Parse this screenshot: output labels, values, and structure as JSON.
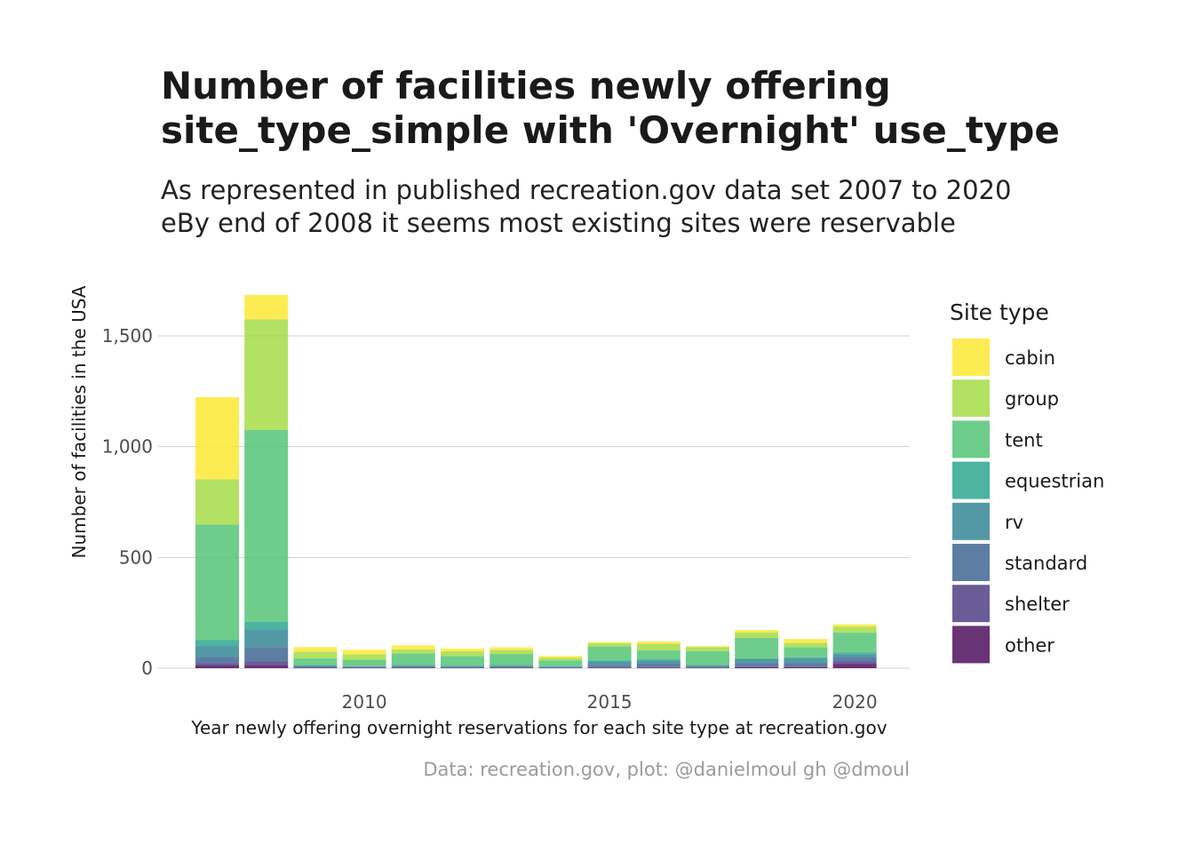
{
  "title_lines": [
    "Number of facilities newly offering",
    "site_type_simple with 'Overnight' use_type"
  ],
  "subtitle_lines": [
    "As represented in published recreation.gov data set 2007 to 2020",
    "eBy end of 2008 it seems most existing sites were reservable"
  ],
  "caption": "Data: recreation.gov, plot: @danielmoul gh @dmoul",
  "chart_data": {
    "type": "bar",
    "stacked": true,
    "xlabel": "Year newly offering overnight reservations for each site type at recreation.gov",
    "ylabel": "Number of facilities in the USA",
    "categories": [
      2007,
      2008,
      2009,
      2010,
      2011,
      2012,
      2013,
      2014,
      2015,
      2016,
      2017,
      2018,
      2019,
      2020
    ],
    "x_ticks": [
      2010,
      2015,
      2020
    ],
    "x_tick_labels": [
      "2010",
      "2015",
      "2020"
    ],
    "y_ticks": [
      0,
      500,
      1000,
      1500
    ],
    "y_tick_labels": [
      "0",
      "500",
      "1,000",
      "1,500"
    ],
    "ylim": [
      0,
      1700
    ],
    "grid": true,
    "legend": {
      "title": "Site type",
      "position": "right"
    },
    "series": [
      {
        "name": "other",
        "color": "#440154",
        "values": [
          12,
          15,
          2,
          2,
          2,
          2,
          2,
          1,
          3,
          3,
          2,
          4,
          4,
          18
        ]
      },
      {
        "name": "shelter",
        "color": "#46337E",
        "values": [
          10,
          15,
          1,
          1,
          1,
          1,
          1,
          1,
          2,
          2,
          1,
          3,
          3,
          12
        ]
      },
      {
        "name": "standard",
        "color": "#365C8D",
        "values": [
          28,
          65,
          3,
          2,
          3,
          2,
          3,
          2,
          10,
          15,
          4,
          15,
          15,
          18
        ]
      },
      {
        "name": "rv",
        "color": "#277F8E",
        "values": [
          50,
          80,
          6,
          4,
          5,
          4,
          5,
          3,
          15,
          15,
          5,
          18,
          22,
          15
        ]
      },
      {
        "name": "equestrian",
        "color": "#1FA187",
        "values": [
          28,
          35,
          3,
          2,
          3,
          3,
          3,
          2,
          5,
          5,
          3,
          5,
          5,
          7
        ]
      },
      {
        "name": "tent",
        "color": "#4AC16D",
        "values": [
          520,
          865,
          30,
          27,
          52,
          42,
          50,
          26,
          63,
          40,
          62,
          92,
          45,
          90
        ]
      },
      {
        "name": "group",
        "color": "#A0DA39",
        "values": [
          205,
          500,
          30,
          25,
          18,
          22,
          18,
          12,
          15,
          30,
          18,
          25,
          20,
          28
        ]
      },
      {
        "name": "cabin",
        "color": "#FDE725",
        "values": [
          370,
          110,
          20,
          20,
          19,
          12,
          12,
          8,
          5,
          10,
          5,
          10,
          18,
          10
        ]
      }
    ]
  }
}
